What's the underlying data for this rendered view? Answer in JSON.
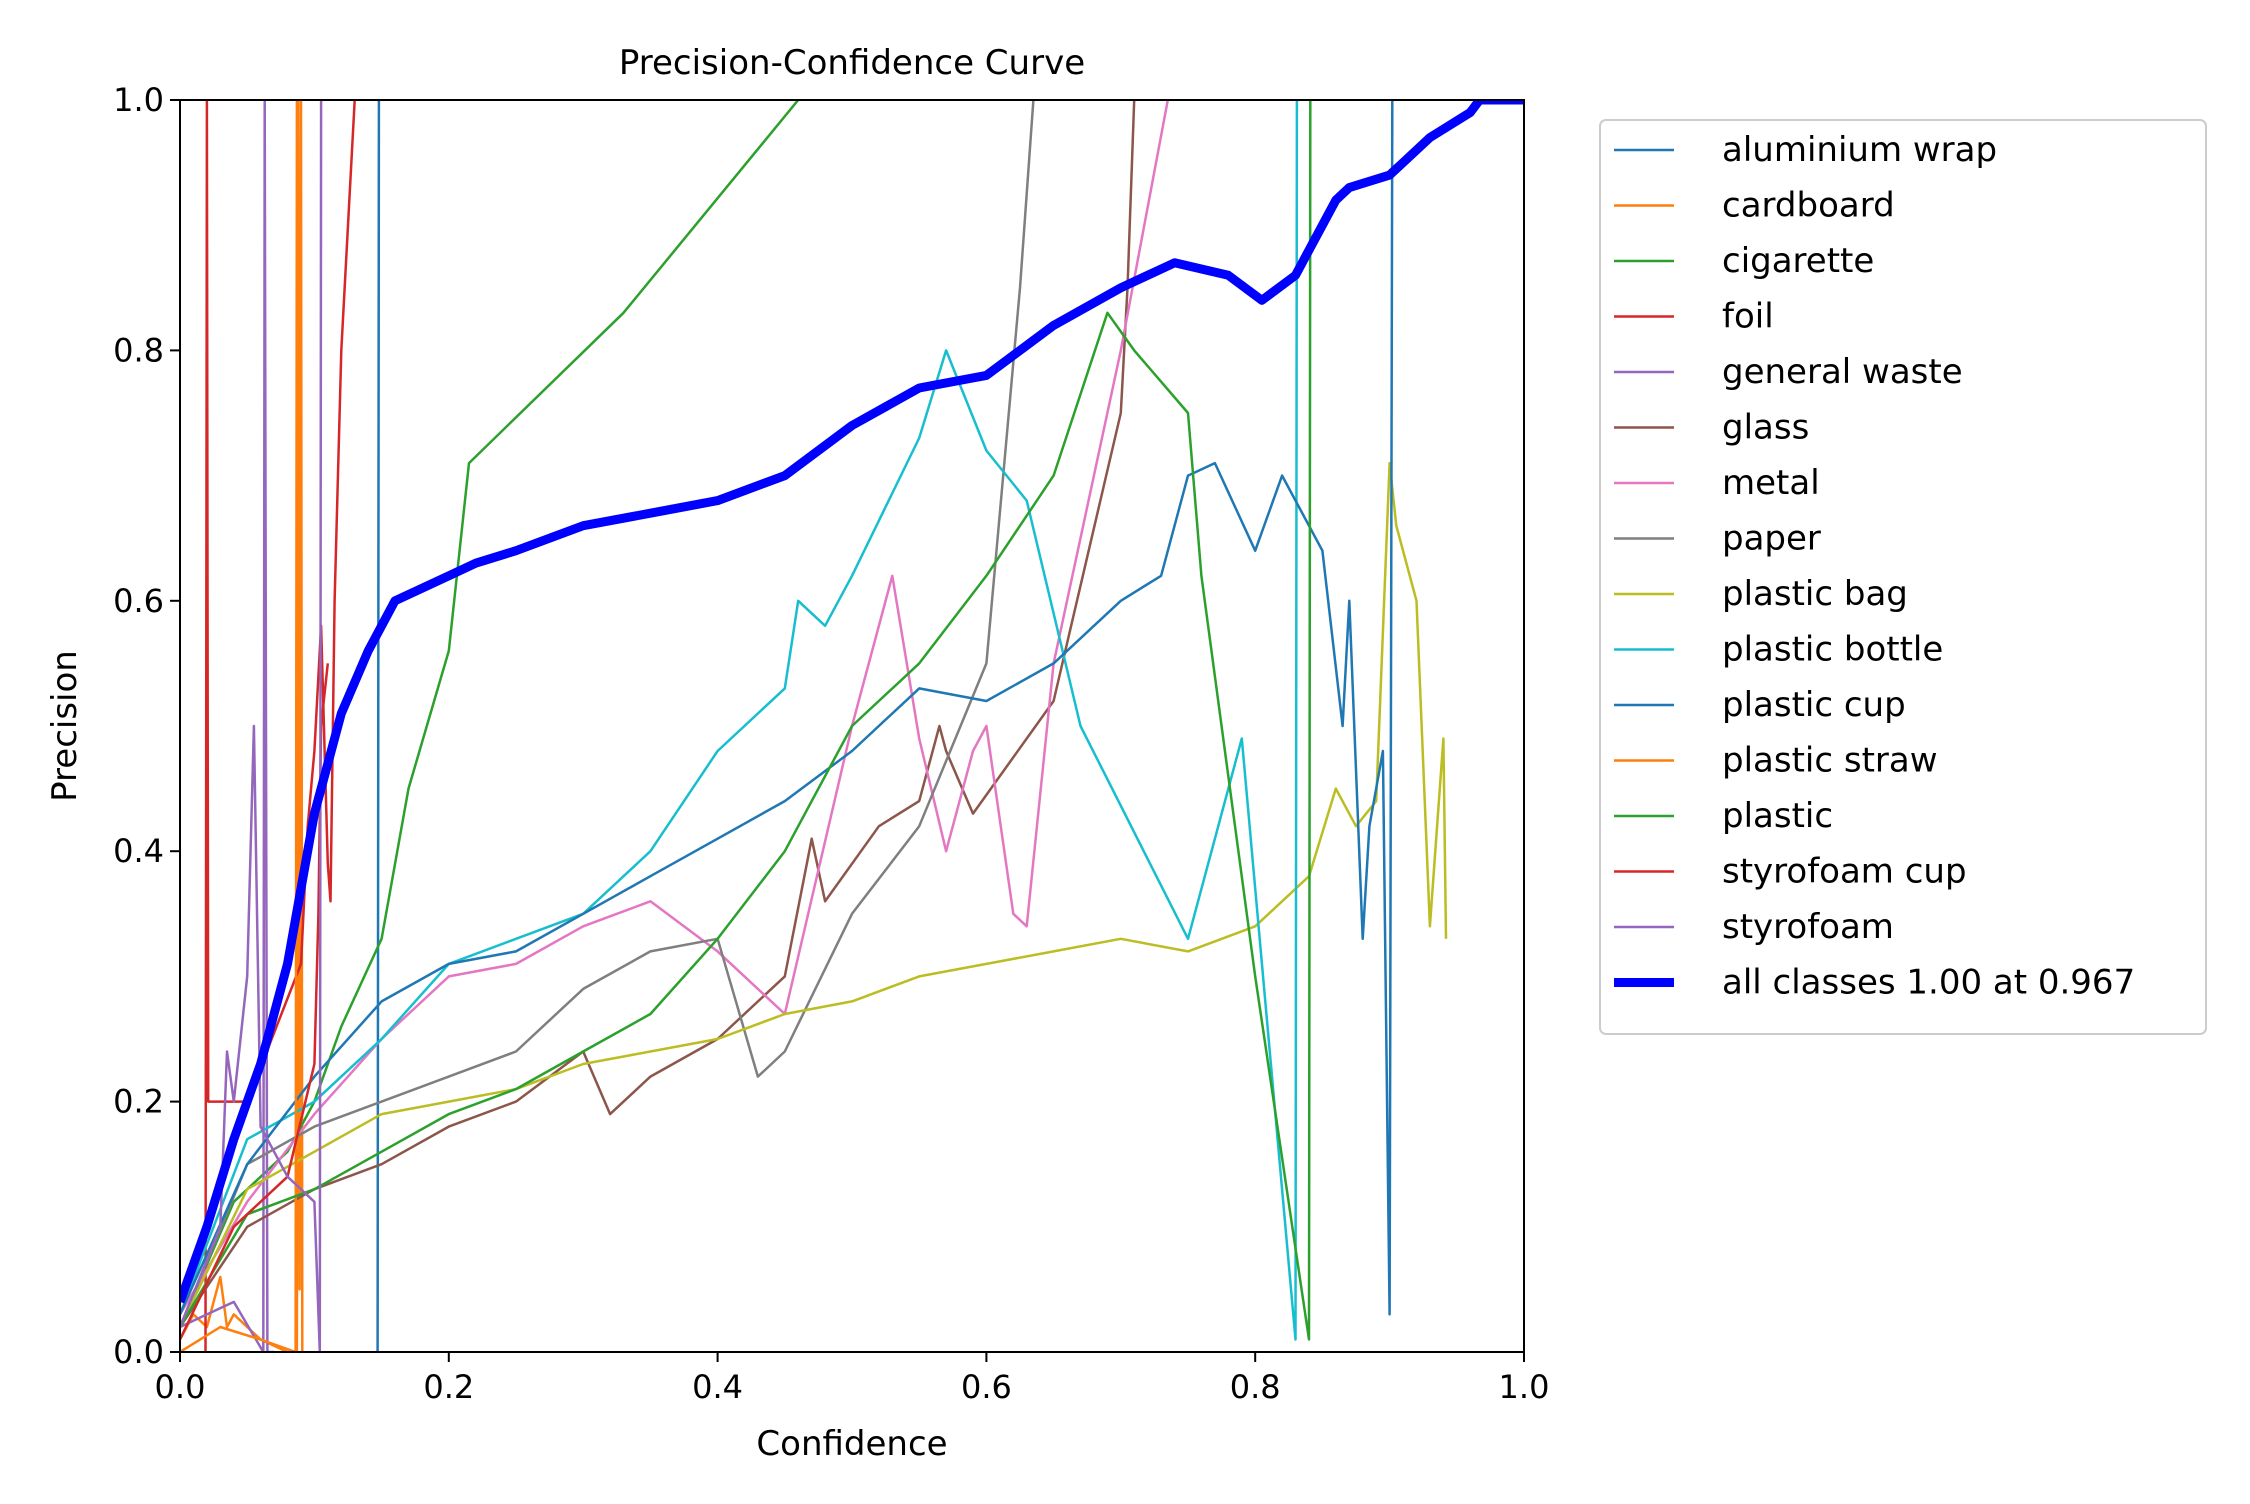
{
  "chart_data": {
    "type": "line",
    "title": "Precision-Confidence Curve",
    "xlabel": "Confidence",
    "ylabel": "Precision",
    "xlim": [
      0.0,
      1.0
    ],
    "ylim": [
      0.0,
      1.0
    ],
    "xticks": [
      "0.0",
      "0.2",
      "0.4",
      "0.6",
      "0.8",
      "1.0"
    ],
    "yticks": [
      "0.0",
      "0.2",
      "0.4",
      "0.6",
      "0.8",
      "1.0"
    ],
    "grid": false,
    "legend_position": "outside-right",
    "series": [
      {
        "name": "aluminium wrap",
        "color": "#1f77b4",
        "x": [
          0.146,
          0.147,
          0.148,
          0.149
        ],
        "y": [
          0.0,
          0.0,
          1.0,
          1.0
        ]
      },
      {
        "name": "cardboard",
        "color": "#ff7f0e",
        "x": [
          0.0,
          0.01,
          0.02,
          0.025,
          0.03,
          0.035,
          0.04,
          0.05,
          0.06,
          0.08,
          0.087,
          0.088,
          0.089,
          0.09,
          0.091
        ],
        "y": [
          0.01,
          0.03,
          0.02,
          0.04,
          0.06,
          0.02,
          0.03,
          0.02,
          0.01,
          0.0,
          0.0,
          1.0,
          0.05,
          1.0,
          0.0
        ]
      },
      {
        "name": "cigarette",
        "color": "#2ca02c",
        "x": [
          0.0,
          0.04,
          0.08,
          0.1,
          0.12,
          0.15,
          0.17,
          0.2,
          0.215,
          0.33,
          0.46
        ],
        "y": [
          0.02,
          0.12,
          0.16,
          0.2,
          0.26,
          0.33,
          0.45,
          0.56,
          0.71,
          0.83,
          1.0
        ]
      },
      {
        "name": "foil",
        "color": "#d62728",
        "x": [
          0.019,
          0.02,
          0.021,
          0.05,
          0.09,
          0.095,
          0.1,
          0.105,
          0.11,
          0.112,
          0.115,
          0.12,
          0.13
        ],
        "y": [
          0.0,
          1.0,
          0.2,
          0.2,
          0.31,
          0.42,
          0.48,
          0.58,
          0.39,
          0.36,
          0.6,
          0.8,
          1.0
        ]
      },
      {
        "name": "general waste",
        "color": "#9467bd",
        "x": [
          0.0,
          0.02,
          0.04,
          0.062,
          0.063,
          0.064,
          0.065,
          0.07
        ],
        "y": [
          0.02,
          0.03,
          0.04,
          0.0,
          1.0,
          0.5,
          0.0,
          0.0
        ]
      },
      {
        "name": "glass",
        "color": "#8c564b",
        "x": [
          0.0,
          0.05,
          0.1,
          0.15,
          0.2,
          0.25,
          0.3,
          0.32,
          0.35,
          0.4,
          0.45,
          0.47,
          0.48,
          0.52,
          0.55,
          0.565,
          0.57,
          0.59,
          0.65,
          0.7,
          0.705,
          0.71
        ],
        "y": [
          0.02,
          0.1,
          0.13,
          0.15,
          0.18,
          0.2,
          0.24,
          0.19,
          0.22,
          0.25,
          0.3,
          0.41,
          0.36,
          0.42,
          0.44,
          0.5,
          0.48,
          0.43,
          0.52,
          0.75,
          0.85,
          1.0
        ]
      },
      {
        "name": "metal",
        "color": "#e377c2",
        "x": [
          0.0,
          0.05,
          0.1,
          0.15,
          0.2,
          0.25,
          0.3,
          0.35,
          0.4,
          0.45,
          0.5,
          0.53,
          0.55,
          0.57,
          0.59,
          0.6,
          0.62,
          0.63,
          0.65,
          0.7,
          0.735
        ],
        "y": [
          0.03,
          0.12,
          0.19,
          0.25,
          0.3,
          0.31,
          0.34,
          0.36,
          0.32,
          0.27,
          0.5,
          0.62,
          0.49,
          0.4,
          0.48,
          0.5,
          0.35,
          0.34,
          0.55,
          0.8,
          1.0
        ]
      },
      {
        "name": "paper",
        "color": "#7f7f7f",
        "x": [
          0.0,
          0.05,
          0.1,
          0.15,
          0.2,
          0.25,
          0.3,
          0.35,
          0.4,
          0.43,
          0.45,
          0.5,
          0.55,
          0.6,
          0.625,
          0.635
        ],
        "y": [
          0.02,
          0.15,
          0.18,
          0.2,
          0.22,
          0.24,
          0.29,
          0.32,
          0.33,
          0.22,
          0.24,
          0.35,
          0.42,
          0.55,
          0.85,
          1.0
        ]
      },
      {
        "name": "plastic bag",
        "color": "#bcbd22",
        "x": [
          0.0,
          0.05,
          0.1,
          0.15,
          0.2,
          0.25,
          0.3,
          0.35,
          0.4,
          0.45,
          0.5,
          0.55,
          0.6,
          0.65,
          0.7,
          0.75,
          0.8,
          0.82,
          0.84,
          0.86,
          0.875,
          0.89,
          0.9,
          0.905,
          0.92,
          0.93,
          0.94,
          0.942
        ],
        "y": [
          0.02,
          0.13,
          0.16,
          0.19,
          0.2,
          0.21,
          0.23,
          0.24,
          0.25,
          0.27,
          0.28,
          0.3,
          0.31,
          0.32,
          0.33,
          0.32,
          0.34,
          0.36,
          0.38,
          0.45,
          0.42,
          0.44,
          0.71,
          0.66,
          0.6,
          0.34,
          0.49,
          0.33
        ]
      },
      {
        "name": "plastic bottle",
        "color": "#17becf",
        "x": [
          0.0,
          0.05,
          0.1,
          0.15,
          0.2,
          0.25,
          0.3,
          0.35,
          0.4,
          0.45,
          0.46,
          0.48,
          0.5,
          0.55,
          0.57,
          0.6,
          0.63,
          0.67,
          0.75,
          0.79,
          0.83,
          0.831,
          0.832
        ],
        "y": [
          0.03,
          0.17,
          0.2,
          0.25,
          0.31,
          0.33,
          0.35,
          0.4,
          0.48,
          0.53,
          0.6,
          0.58,
          0.62,
          0.73,
          0.8,
          0.72,
          0.68,
          0.5,
          0.33,
          0.49,
          0.01,
          1.0,
          1.0
        ]
      },
      {
        "name": "plastic cup",
        "color": "#1f77b4",
        "x": [
          0.0,
          0.05,
          0.1,
          0.15,
          0.2,
          0.25,
          0.3,
          0.35,
          0.4,
          0.45,
          0.5,
          0.55,
          0.6,
          0.65,
          0.7,
          0.73,
          0.75,
          0.77,
          0.8,
          0.82,
          0.85,
          0.865,
          0.87,
          0.88,
          0.885,
          0.895,
          0.9,
          0.902,
          0.903
        ],
        "y": [
          0.03,
          0.15,
          0.22,
          0.28,
          0.31,
          0.32,
          0.35,
          0.38,
          0.41,
          0.44,
          0.48,
          0.53,
          0.52,
          0.55,
          0.6,
          0.62,
          0.7,
          0.71,
          0.64,
          0.7,
          0.64,
          0.5,
          0.6,
          0.33,
          0.42,
          0.48,
          0.03,
          1.0,
          1.0
        ]
      },
      {
        "name": "plastic straw",
        "color": "#ff7f0e",
        "x": [
          0.0,
          0.03,
          0.06,
          0.086,
          0.087,
          0.088
        ],
        "y": [
          0.0,
          0.02,
          0.01,
          0.0,
          1.0,
          1.0
        ]
      },
      {
        "name": "plastic",
        "color": "#2ca02c",
        "x": [
          0.0,
          0.05,
          0.1,
          0.15,
          0.2,
          0.25,
          0.3,
          0.35,
          0.4,
          0.45,
          0.5,
          0.55,
          0.6,
          0.65,
          0.69,
          0.71,
          0.75,
          0.76,
          0.8,
          0.84,
          0.841,
          0.842
        ],
        "y": [
          0.02,
          0.11,
          0.13,
          0.16,
          0.19,
          0.21,
          0.24,
          0.27,
          0.33,
          0.4,
          0.5,
          0.55,
          0.62,
          0.7,
          0.83,
          0.8,
          0.75,
          0.62,
          0.3,
          0.01,
          1.0,
          1.0
        ]
      },
      {
        "name": "styrofoam cup",
        "color": "#d62728",
        "x": [
          0.0,
          0.04,
          0.08,
          0.1,
          0.103,
          0.105,
          0.11
        ],
        "y": [
          0.01,
          0.1,
          0.14,
          0.23,
          0.35,
          0.5,
          0.55
        ]
      },
      {
        "name": "styrofoam",
        "color": "#9467bd",
        "x": [
          0.0,
          0.03,
          0.035,
          0.04,
          0.05,
          0.055,
          0.06,
          0.08,
          0.1,
          0.104,
          0.105,
          0.106
        ],
        "y": [
          0.02,
          0.1,
          0.24,
          0.2,
          0.3,
          0.5,
          0.18,
          0.14,
          0.12,
          0.0,
          1.0,
          1.0
        ]
      },
      {
        "name": "all classes 1.00 at 0.967",
        "color": "#0000ff",
        "bold": true,
        "x": [
          0.0,
          0.02,
          0.04,
          0.06,
          0.08,
          0.1,
          0.12,
          0.14,
          0.16,
          0.18,
          0.2,
          0.22,
          0.25,
          0.3,
          0.35,
          0.4,
          0.45,
          0.5,
          0.55,
          0.6,
          0.65,
          0.7,
          0.74,
          0.78,
          0.805,
          0.83,
          0.86,
          0.87,
          0.9,
          0.93,
          0.96,
          0.967,
          1.0
        ],
        "y": [
          0.04,
          0.1,
          0.17,
          0.23,
          0.31,
          0.43,
          0.51,
          0.56,
          0.6,
          0.61,
          0.62,
          0.63,
          0.64,
          0.66,
          0.67,
          0.68,
          0.7,
          0.74,
          0.77,
          0.78,
          0.82,
          0.85,
          0.87,
          0.86,
          0.84,
          0.86,
          0.92,
          0.93,
          0.94,
          0.97,
          0.99,
          1.0,
          1.0
        ]
      }
    ]
  }
}
